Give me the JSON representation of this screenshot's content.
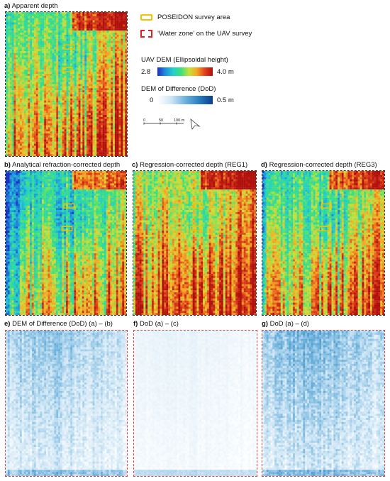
{
  "panels": {
    "a": {
      "letter": "a)",
      "title": "Apparent depth"
    },
    "b": {
      "letter": "b)",
      "title": "Analytical refraction-corrected depth"
    },
    "c": {
      "letter": "c)",
      "title": "Regression-corrected depth (REG1)"
    },
    "d": {
      "letter": "d)",
      "title": "Regression-corrected depth (REG3)"
    },
    "e": {
      "letter": "e)",
      "title": "DEM of Difference (DoD) (a) – (b)"
    },
    "f": {
      "letter": "f)",
      "title": "DoD  (a) – (c)"
    },
    "g": {
      "letter": "g)",
      "title": "DoD  (a) – (d)"
    }
  },
  "legend": {
    "poseidon": "POSEIDON survey area",
    "water_zone": "‘Water zone’ on the UAV survey",
    "dem_title": "UAV DEM (Ellipsoidal height)",
    "dem_min": "2.8",
    "dem_max": "4.0 m",
    "dod_title": "DEM of Difference (DoD)",
    "dod_min": "0",
    "dod_max": "0.5 m",
    "scale_ticks": [
      "0",
      "50",
      "100 m"
    ]
  },
  "colors": {
    "poseidon_outline": "#f2c200",
    "water_zone_outline": "#e02020",
    "dem_ramp": [
      "#1a2fbf",
      "#1f8fe0",
      "#22d0c8",
      "#3ee07a",
      "#c8e03a",
      "#f5a623",
      "#e0401a",
      "#b0100c"
    ],
    "dod_ramp": [
      "#ffffff",
      "#cfe6f5",
      "#6fb3dd",
      "#2a7fc0",
      "#0b3e8c"
    ]
  }
}
